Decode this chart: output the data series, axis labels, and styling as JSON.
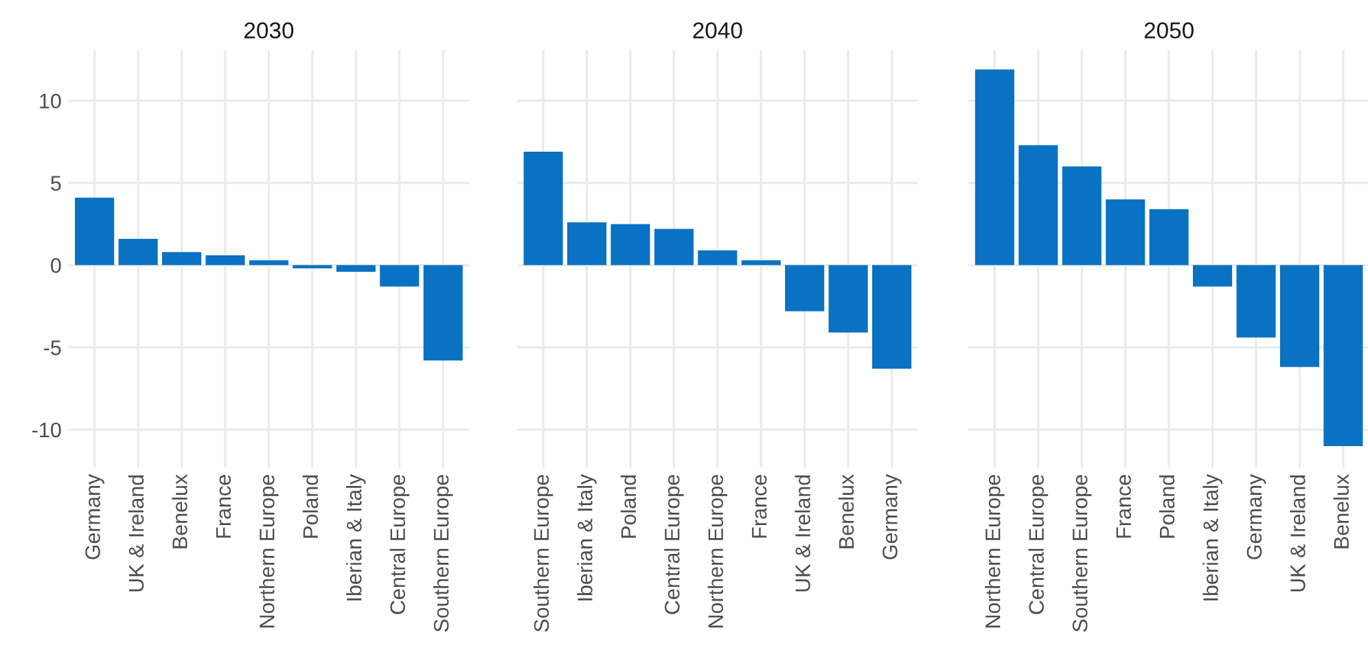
{
  "chart_data": [
    {
      "type": "bar",
      "title": "2030",
      "categories": [
        "Germany",
        "UK & Ireland",
        "Benelux",
        "France",
        "Northern Europe",
        "Poland",
        "Iberian & Italy",
        "Central Europe",
        "Southern Europe"
      ],
      "series": [
        {
          "color": "#0a72c2",
          "values": [
            4.1,
            1.6,
            0.8,
            0.6,
            0.3,
            -0.2,
            -0.4,
            -1.3,
            -5.8
          ]
        }
      ],
      "ylim": [
        -12.3,
        13.1
      ],
      "yticks": [
        -10,
        -5,
        0,
        5,
        10
      ],
      "grid": true
    },
    {
      "type": "bar",
      "title": "2040",
      "categories": [
        "Southern Europe",
        "Iberian & Italy",
        "Poland",
        "Central Europe",
        "Northern Europe",
        "France",
        "UK & Ireland",
        "Benelux",
        "Germany"
      ],
      "series": [
        {
          "color": "#0a72c2",
          "values": [
            6.9,
            2.6,
            2.5,
            2.2,
            0.9,
            0.3,
            -2.8,
            -4.1,
            -6.3
          ]
        }
      ],
      "ylim": [
        -12.3,
        13.1
      ],
      "yticks": [
        -10,
        -5,
        0,
        5,
        10
      ],
      "grid": true,
      "tick_labels": "x"
    },
    {
      "type": "bar",
      "title": "2050",
      "categories": [
        "Northern Europe",
        "Central Europe",
        "Southern Europe",
        "France",
        "Poland",
        "Iberian & Italy",
        "Germany",
        "UK & Ireland",
        "Benelux"
      ],
      "series": [
        {
          "color": "#0a72c2",
          "values": [
            11.9,
            7.3,
            6.0,
            4.0,
            3.4,
            -1.3,
            -4.4,
            -6.2,
            -11.0
          ]
        }
      ],
      "ylim": [
        -12.3,
        13.1
      ],
      "yticks": [
        -10,
        -5,
        0,
        5,
        10
      ],
      "grid": true,
      "tick_labels": "x"
    }
  ]
}
